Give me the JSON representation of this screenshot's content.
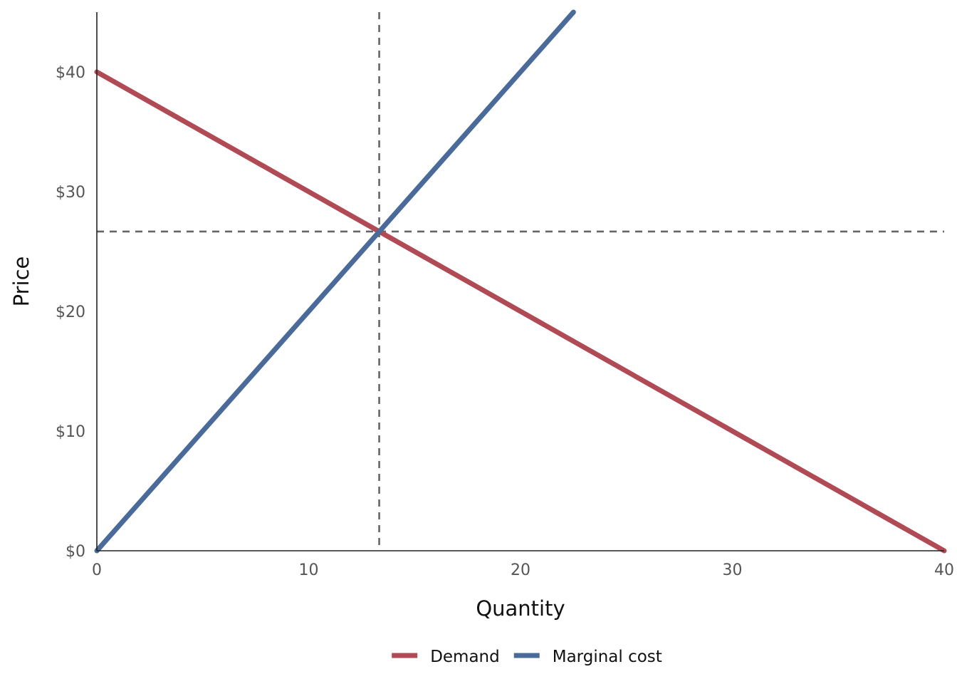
{
  "chart_data": {
    "type": "line",
    "xlabel": "Quantity",
    "ylabel": "Price",
    "xlim": [
      0,
      40
    ],
    "ylim": [
      0,
      45
    ],
    "x_ticks": [
      0,
      10,
      20,
      30,
      40
    ],
    "x_tick_labels": [
      "0",
      "10",
      "20",
      "30",
      "40"
    ],
    "y_ticks": [
      0,
      10,
      20,
      30,
      40
    ],
    "y_tick_labels": [
      "$0",
      "$10",
      "$20",
      "$30",
      "$40"
    ],
    "grid": false,
    "legend_position": "bottom",
    "series": [
      {
        "name": "Demand",
        "color": "#b04a55",
        "x": [
          0,
          40
        ],
        "y": [
          40,
          0
        ]
      },
      {
        "name": "Marginal cost",
        "color": "#4a6b9a",
        "x": [
          0,
          22.5
        ],
        "y": [
          0,
          45
        ]
      }
    ],
    "reference_lines": [
      {
        "orientation": "vertical",
        "x": 13.33,
        "color": "#666666",
        "style": "dashed"
      },
      {
        "orientation": "horizontal",
        "y": 26.67,
        "color": "#666666",
        "style": "dashed"
      }
    ]
  }
}
